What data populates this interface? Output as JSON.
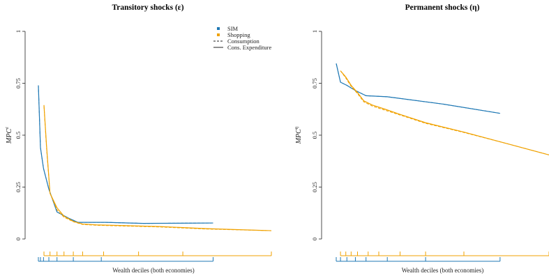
{
  "colors": {
    "SIM": "#1f78b4",
    "Shopping": "#f0a202",
    "axis": "#222222"
  },
  "legend": [
    {
      "label": "SIM",
      "kind": "square",
      "color": "#1f78b4"
    },
    {
      "label": "Shopping",
      "kind": "square",
      "color": "#f0a202"
    },
    {
      "label": "Consumption",
      "kind": "dashed"
    },
    {
      "label": "Cons. Expenditure",
      "kind": "solid"
    }
  ],
  "chart_data": [
    {
      "type": "line",
      "title": "Transitory shocks (ε)",
      "xlabel": "Wealth deciles (both economies)",
      "ylabel": "MPC",
      "ylabel_sup": "ε",
      "ylim": [
        0,
        1
      ],
      "yticks": [
        "0",
        "0.25",
        "0.5",
        "0.75",
        "1"
      ],
      "xlim": [
        0,
        1
      ],
      "grid": false,
      "legend_position": "top-right",
      "series": [
        {
          "name": "SIM",
          "style": "solid",
          "x": [
            0.0,
            0.009,
            0.022,
            0.045,
            0.08,
            0.13,
            0.17,
            0.22,
            0.29,
            0.45,
            0.75
          ],
          "y": [
            0.74,
            0.44,
            0.34,
            0.24,
            0.13,
            0.1,
            0.08,
            0.08,
            0.08,
            0.075,
            0.077
          ]
        },
        {
          "name": "SIM",
          "style": "dashed",
          "x": [
            0.0,
            0.009,
            0.022,
            0.045,
            0.08,
            0.13,
            0.17,
            0.22,
            0.29,
            0.45,
            0.75
          ],
          "y": [
            0.74,
            0.44,
            0.34,
            0.24,
            0.13,
            0.1,
            0.08,
            0.08,
            0.08,
            0.075,
            0.077
          ]
        },
        {
          "name": "Shopping",
          "style": "solid",
          "x": [
            0.024,
            0.035,
            0.05,
            0.08,
            0.11,
            0.15,
            0.19,
            0.25,
            0.35,
            0.52,
            0.72,
            1.0
          ],
          "y": [
            0.645,
            0.45,
            0.22,
            0.15,
            0.11,
            0.085,
            0.072,
            0.068,
            0.065,
            0.06,
            0.05,
            0.04
          ]
        },
        {
          "name": "Shopping",
          "style": "dashed",
          "x": [
            0.024,
            0.035,
            0.05,
            0.08,
            0.11,
            0.15,
            0.19,
            0.25,
            0.35,
            0.52,
            0.72,
            1.0
          ],
          "y": [
            0.64,
            0.44,
            0.22,
            0.14,
            0.105,
            0.083,
            0.07,
            0.066,
            0.063,
            0.058,
            0.048,
            0.04
          ]
        }
      ],
      "decile_ticks": {
        "Shopping": [
          0.024,
          0.05,
          0.08,
          0.11,
          0.15,
          0.19,
          0.28,
          0.43,
          0.62,
          1.0
        ],
        "SIM": [
          0.0,
          0.009,
          0.022,
          0.045,
          0.08,
          0.15,
          0.27,
          0.75
        ]
      }
    },
    {
      "type": "line",
      "title": "Permanent shocks (η)",
      "xlabel": "Wealth deciles (both economies)",
      "ylabel": "MPC",
      "ylabel_sup": "η",
      "ylim": [
        0,
        1
      ],
      "yticks": [
        "0",
        "0.25",
        "0.5",
        "0.75",
        "1"
      ],
      "xlim": [
        0,
        1
      ],
      "grid": false,
      "series": [
        {
          "name": "SIM",
          "style": "solid",
          "x": [
            0.0,
            0.02,
            0.05,
            0.09,
            0.14,
            0.24,
            0.5,
            0.77
          ],
          "y": [
            0.845,
            0.755,
            0.74,
            0.715,
            0.69,
            0.685,
            0.65,
            0.605
          ]
        },
        {
          "name": "SIM",
          "style": "dashed",
          "x": [
            0.0,
            0.02,
            0.05,
            0.09,
            0.14,
            0.24,
            0.5,
            0.77
          ],
          "y": [
            0.845,
            0.755,
            0.74,
            0.715,
            0.69,
            0.685,
            0.65,
            0.605
          ]
        },
        {
          "name": "Shopping",
          "style": "solid",
          "x": [
            0.02,
            0.045,
            0.07,
            0.1,
            0.13,
            0.17,
            0.23,
            0.3,
            0.42,
            0.6,
            0.8,
            1.0
          ],
          "y": [
            0.81,
            0.78,
            0.74,
            0.705,
            0.665,
            0.645,
            0.625,
            0.6,
            0.56,
            0.515,
            0.46,
            0.405
          ]
        },
        {
          "name": "Shopping",
          "style": "dashed",
          "x": [
            0.02,
            0.045,
            0.07,
            0.1,
            0.13,
            0.17,
            0.23,
            0.3,
            0.42,
            0.6,
            0.8,
            1.0
          ],
          "y": [
            0.81,
            0.775,
            0.735,
            0.7,
            0.66,
            0.64,
            0.62,
            0.597,
            0.557,
            0.513,
            0.46,
            0.405
          ]
        }
      ],
      "decile_ticks": {
        "Shopping": [
          0.02,
          0.045,
          0.07,
          0.1,
          0.15,
          0.2,
          0.3,
          0.42,
          0.6,
          1.0
        ],
        "SIM": [
          0.0,
          0.02,
          0.05,
          0.09,
          0.14,
          0.24,
          0.42,
          0.77
        ]
      }
    }
  ]
}
